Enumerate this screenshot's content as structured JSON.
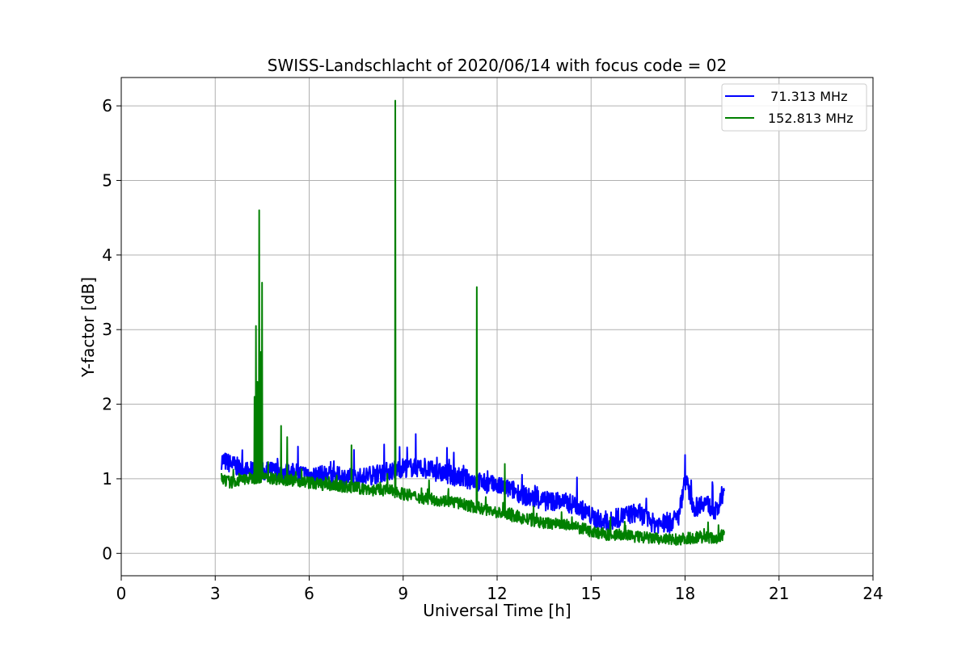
{
  "chart_data": {
    "type": "line",
    "title": "SWISS-Landschlacht of 2020/06/14 with focus code = 02",
    "xlabel": "Universal Time [h]",
    "ylabel": "Y-factor [dB]",
    "xlim": [
      0,
      24
    ],
    "ylim": [
      -0.3,
      6.38
    ],
    "xticks": [
      0,
      3,
      6,
      9,
      12,
      15,
      18,
      21,
      24
    ],
    "yticks": [
      0,
      1,
      2,
      3,
      4,
      5,
      6
    ],
    "grid": true,
    "legend_position": "top-right",
    "series": [
      {
        "name": "  71.313 MHz",
        "color": "#0000ff",
        "x": [
          3.2,
          3.5,
          4.0,
          4.5,
          5.0,
          5.5,
          6.0,
          6.5,
          7.0,
          7.5,
          8.0,
          8.5,
          9.0,
          9.5,
          10.0,
          10.5,
          11.0,
          11.5,
          12.0,
          12.5,
          13.0,
          13.5,
          14.0,
          14.5,
          15.0,
          15.5,
          16.0,
          16.5,
          17.0,
          17.5,
          17.8,
          18.0,
          18.3,
          18.6,
          19.0,
          19.25
        ],
        "y": [
          1.25,
          1.2,
          1.1,
          1.1,
          1.1,
          1.08,
          1.05,
          1.05,
          1.03,
          1.0,
          1.05,
          1.1,
          1.15,
          1.15,
          1.1,
          1.05,
          1.0,
          0.95,
          0.9,
          0.85,
          0.75,
          0.7,
          0.7,
          0.65,
          0.5,
          0.4,
          0.5,
          0.55,
          0.4,
          0.4,
          0.5,
          1.0,
          0.6,
          0.7,
          0.55,
          0.8
        ]
      },
      {
        "name": "152.813 MHz",
        "color": "#008000",
        "x": [
          3.2,
          3.5,
          4.0,
          4.5,
          5.0,
          5.5,
          6.0,
          6.5,
          7.0,
          7.5,
          8.0,
          8.5,
          9.0,
          9.5,
          10.0,
          10.5,
          11.0,
          11.5,
          12.0,
          12.5,
          13.0,
          13.5,
          14.0,
          14.5,
          15.0,
          15.5,
          16.0,
          16.5,
          17.0,
          17.5,
          18.0,
          18.5,
          19.0,
          19.25
        ],
        "y": [
          1.0,
          0.95,
          1.0,
          1.02,
          1.0,
          0.98,
          0.95,
          0.92,
          0.9,
          0.88,
          0.85,
          0.85,
          0.8,
          0.75,
          0.72,
          0.7,
          0.65,
          0.6,
          0.55,
          0.5,
          0.45,
          0.4,
          0.4,
          0.35,
          0.3,
          0.25,
          0.25,
          0.22,
          0.2,
          0.18,
          0.2,
          0.22,
          0.2,
          0.25
        ]
      }
    ],
    "spikes": [
      {
        "series": 1,
        "x": 4.25,
        "y": 2.1
      },
      {
        "series": 1,
        "x": 4.3,
        "y": 3.05
      },
      {
        "series": 1,
        "x": 4.35,
        "y": 2.3
      },
      {
        "series": 1,
        "x": 4.4,
        "y": 4.6
      },
      {
        "series": 1,
        "x": 4.45,
        "y": 2.7
      },
      {
        "series": 1,
        "x": 4.5,
        "y": 3.63
      },
      {
        "series": 1,
        "x": 5.1,
        "y": 1.71
      },
      {
        "series": 1,
        "x": 5.3,
        "y": 1.56
      },
      {
        "series": 1,
        "x": 7.35,
        "y": 1.45
      },
      {
        "series": 1,
        "x": 8.75,
        "y": 6.07
      },
      {
        "series": 1,
        "x": 11.35,
        "y": 3.57
      },
      {
        "series": 1,
        "x": 12.25,
        "y": 1.2
      },
      {
        "series": 0,
        "x": 18.0,
        "y": 1.32
      },
      {
        "series": 0,
        "x": 9.4,
        "y": 1.6
      }
    ]
  }
}
